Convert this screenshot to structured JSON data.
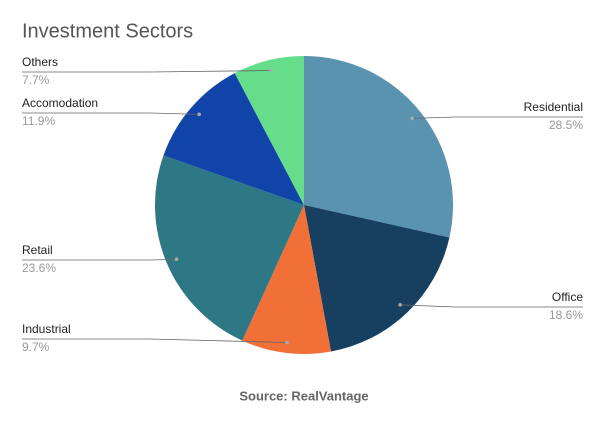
{
  "chart_data": {
    "type": "pie",
    "title": "Investment Sectors",
    "source": "Source: RealVantage",
    "categories": [
      "Residential",
      "Office",
      "Industrial",
      "Retail",
      "Accomodation",
      "Others"
    ],
    "values": [
      28.5,
      18.6,
      9.7,
      23.6,
      11.9,
      7.7
    ],
    "value_labels": [
      "28.5%",
      "18.6%",
      "9.7%",
      "23.6%",
      "11.9%",
      "7.7%"
    ],
    "colors": [
      "#5a93b0",
      "#173f5f",
      "#f07038",
      "#2e7784",
      "#1144a8",
      "#66dd8a"
    ]
  }
}
